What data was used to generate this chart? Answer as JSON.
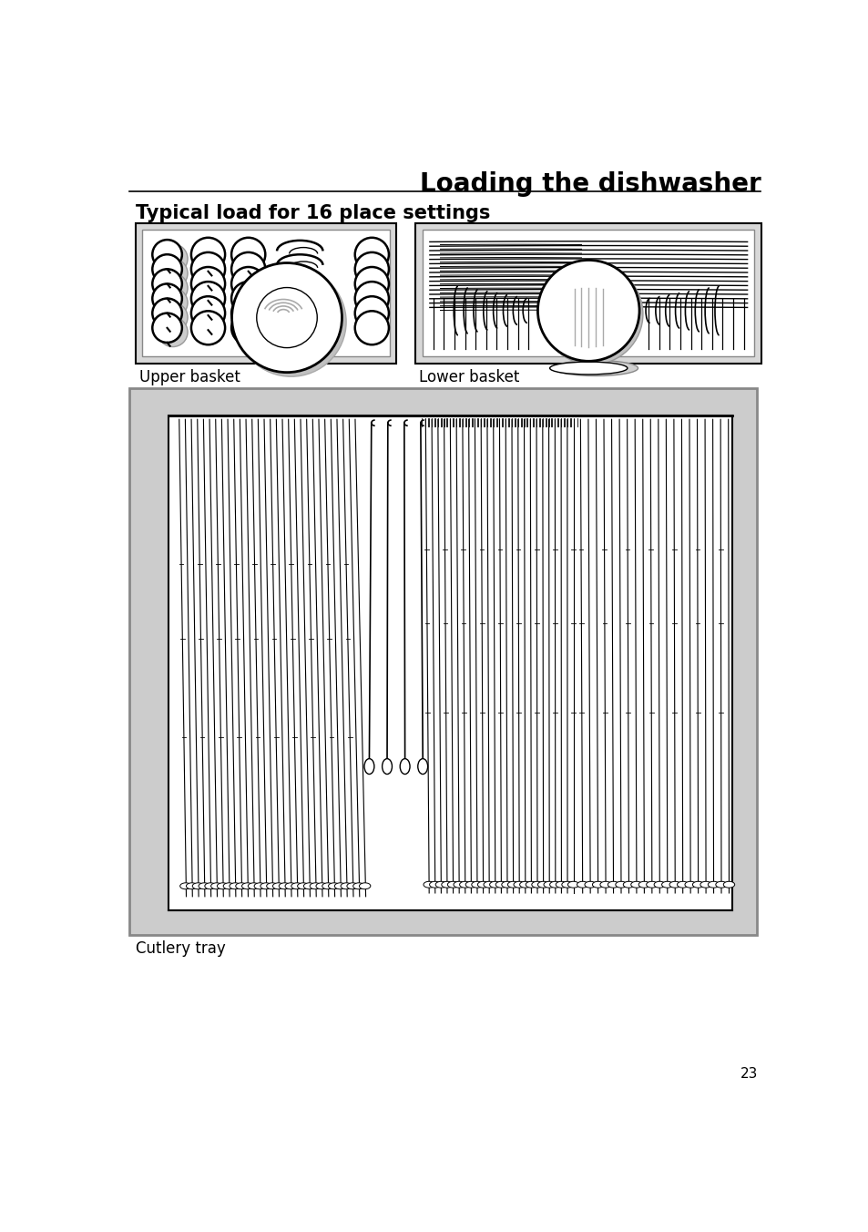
{
  "title": "Loading the dishwasher",
  "subtitle": "Typical load for 16 place settings",
  "label_upper": "Upper basket",
  "label_lower": "Lower basket",
  "label_cutlery": "Cutlery tray",
  "page_number": "23",
  "bg_color": "#ffffff",
  "outer_box_color": "#d0d0d0",
  "text_color": "#000000",
  "title_fontsize": 20,
  "subtitle_fontsize": 15,
  "label_fontsize": 12,
  "page_fontsize": 11
}
